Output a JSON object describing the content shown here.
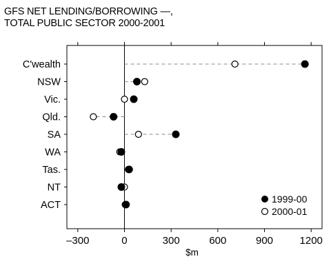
{
  "chart_data": {
    "type": "dot",
    "title_lines": [
      "GFS NET LENDING/BORROWING —,",
      "TOTAL PUBLIC SECTOR  2000-2001"
    ],
    "xlabel": "$m",
    "ylabel": "",
    "xlim": [
      -370,
      1270
    ],
    "xticks": [
      -300,
      0,
      300,
      600,
      900,
      1200
    ],
    "xtick_labels": [
      "–300",
      "0",
      "300",
      "600",
      "900",
      "1200"
    ],
    "categories": [
      "C'wealth",
      "NSW",
      "Vic.",
      "Qld.",
      "SA",
      "WA",
      "Tas.",
      "NT",
      "ACT"
    ],
    "series": [
      {
        "name": "1999-00",
        "marker": "filled-circle",
        "values": [
          1160,
          80,
          60,
          -70,
          330,
          -20,
          30,
          -20,
          10
        ]
      },
      {
        "name": "2000-01",
        "marker": "open-circle",
        "values": [
          710,
          130,
          0,
          -200,
          90,
          -30,
          25,
          0,
          5
        ]
      }
    ],
    "legend_position": "bottom-right",
    "grid": false,
    "connectors": "dashed"
  }
}
